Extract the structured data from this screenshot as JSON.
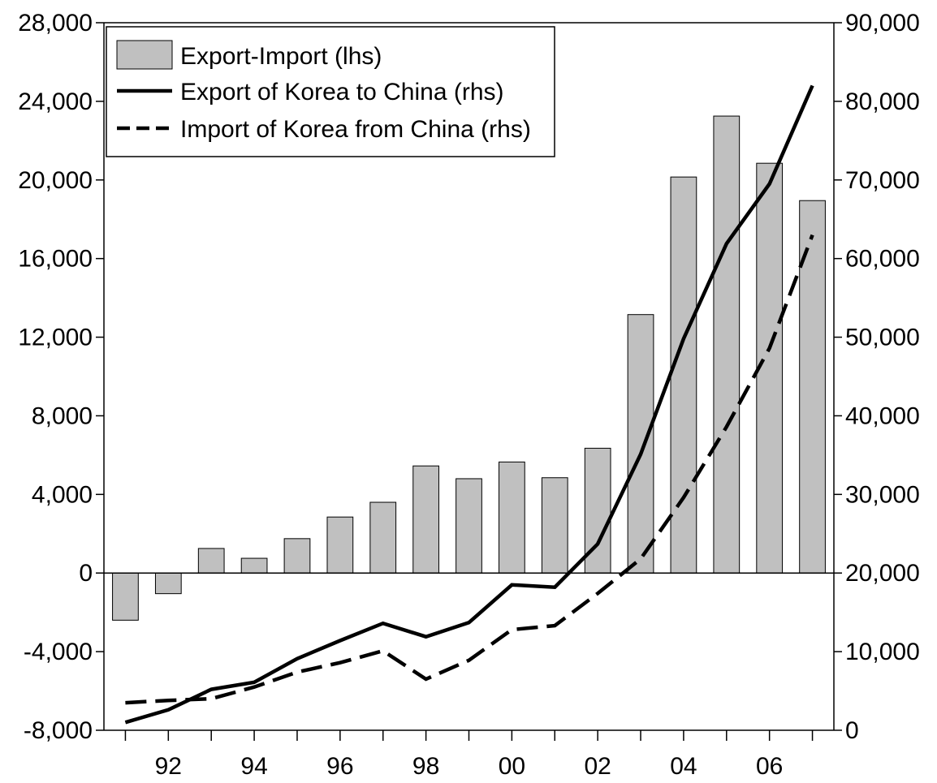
{
  "chart_data": {
    "type": "bar",
    "x_categories": [
      "91",
      "92",
      "93",
      "94",
      "95",
      "96",
      "97",
      "98",
      "99",
      "00",
      "01",
      "02",
      "03",
      "04",
      "05",
      "06",
      "07"
    ],
    "x_tick_labels": [
      "92",
      "94",
      "96",
      "98",
      "00",
      "02",
      "04",
      "06"
    ],
    "legend_placement": "top-left",
    "y_left": {
      "range": [
        -8000,
        28000
      ],
      "ticks": [
        "-8,000",
        "-4,000",
        "0",
        "4,000",
        "8,000",
        "12,000",
        "16,000",
        "20,000",
        "24,000",
        "28,000"
      ]
    },
    "y_right": {
      "range": [
        0,
        90000
      ],
      "ticks": [
        "0",
        "10,000",
        "20,000",
        "30,000",
        "40,000",
        "50,000",
        "60,000",
        "70,000",
        "80,000",
        "90,000"
      ]
    },
    "series": [
      {
        "name": "Export-Import (lhs)",
        "type": "bar",
        "axis": "left",
        "color": "#c0c0c0",
        "values": [
          -2400,
          -1050,
          1250,
          750,
          1750,
          2850,
          3600,
          5450,
          4800,
          5650,
          4850,
          6350,
          13150,
          20150,
          23250,
          20850,
          18950
        ]
      },
      {
        "name": "Export of Korea to China (rhs)",
        "type": "line",
        "style": "solid",
        "axis": "right",
        "color": "#000000",
        "values": [
          1000,
          2600,
          5200,
          6100,
          9100,
          11400,
          13600,
          11900,
          13700,
          18500,
          18200,
          23700,
          35100,
          49800,
          61900,
          69500,
          82000
        ]
      },
      {
        "name": "Import of Korea from China (rhs)",
        "type": "line",
        "style": "dashed",
        "axis": "right",
        "color": "#000000",
        "values": [
          3500,
          3800,
          4000,
          5500,
          7400,
          8600,
          10100,
          6500,
          8900,
          12800,
          13300,
          17400,
          21800,
          29600,
          38600,
          48600,
          63000
        ]
      }
    ]
  }
}
